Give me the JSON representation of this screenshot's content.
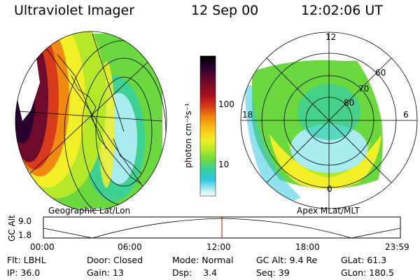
{
  "header": {
    "instrument": "Ultraviolet Imager",
    "date": "12 Sep 00",
    "time": "12:02:06 UT"
  },
  "colorbar": {
    "unit_label": "photon cm⁻²s⁻¹",
    "ticks": [
      "100",
      "10"
    ],
    "colors": [
      "#000000",
      "#2a0030",
      "#6e0a2a",
      "#a80f1e",
      "#d83a1a",
      "#f08a10",
      "#f8c218",
      "#f2ee28",
      "#b6e82a",
      "#6cd840",
      "#34cfa8",
      "#37c8e6",
      "#a8ecf0",
      "#ffffff"
    ]
  },
  "left_panel": {
    "caption": "Geographic Lat/Lon"
  },
  "right_panel": {
    "caption": "Apex MLat/MLT",
    "mlt_labels": {
      "top": "12",
      "left": "18",
      "right": "6",
      "bottom": "0"
    },
    "lat_labels": [
      "60",
      "70",
      "80"
    ]
  },
  "altitude_plot": {
    "axis_label": "GC Alt",
    "y_ticks": [
      "9.0",
      "1.8"
    ],
    "x_ticks": [
      "00:00",
      "06:00",
      "12:00",
      "18:00",
      "23:59"
    ],
    "current_time_fraction": 0.5
  },
  "status": {
    "row1": [
      {
        "label": "Flt:",
        "value": "LBHL"
      },
      {
        "label": "Door:",
        "value": "Closed"
      },
      {
        "label": "Mode:",
        "value": "Normal"
      },
      {
        "label": "GC Alt:",
        "value": "9.4 Re"
      },
      {
        "label": "GLat:",
        "value": "61.3"
      }
    ],
    "row2": [
      {
        "label": "IP:",
        "value": "36.0"
      },
      {
        "label": "Gain:",
        "value": "13"
      },
      {
        "label": "Dsp:",
        "value": "3.4"
      },
      {
        "label": "Seq:",
        "value": "39"
      },
      {
        "label": "GLon:",
        "value": "180.5"
      }
    ]
  }
}
